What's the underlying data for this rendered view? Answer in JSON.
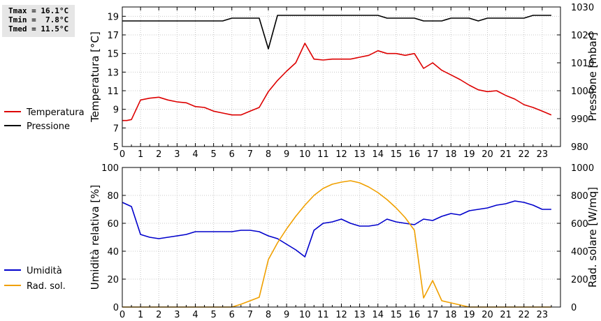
{
  "stats": {
    "tmax": "Tmax = 16.1°C",
    "tmin": "Tmin =  7.8°C",
    "tmed": "Tmed = 11.5°C"
  },
  "chart_data": [
    {
      "type": "line",
      "x_ticks": [
        "0",
        "1",
        "2",
        "3",
        "4",
        "5",
        "6",
        "7",
        "8",
        "9",
        "10",
        "11",
        "12",
        "13",
        "14",
        "15",
        "16",
        "17",
        "18",
        "19",
        "20",
        "21",
        "22",
        "23"
      ],
      "xlim": [
        0,
        24
      ],
      "ylabel": "Temperatura [°C]",
      "ylim": [
        5,
        20
      ],
      "y_ticks": [
        "5",
        "7",
        "9",
        "11",
        "13",
        "15",
        "17",
        "19"
      ],
      "y2label": "Pressione [mbar]",
      "y2lim": [
        980,
        1030
      ],
      "y2_ticks": [
        "980",
        "990",
        "1000",
        "1010",
        "1020",
        "1030"
      ],
      "grid": true,
      "legend_position": "left",
      "series": [
        {
          "name": "Temperatura",
          "color": "#dd0000",
          "axis": "left",
          "x": [
            0,
            0.25,
            0.5,
            1,
            1.5,
            2,
            2.5,
            3,
            3.5,
            4,
            4.5,
            5,
            5.5,
            6,
            6.5,
            7,
            7.5,
            8,
            8.5,
            9,
            9.5,
            10,
            10.5,
            11,
            11.5,
            12,
            12.5,
            13,
            13.5,
            14,
            14.5,
            15,
            15.5,
            16,
            16.5,
            17,
            17.5,
            18,
            18.5,
            19,
            19.5,
            20,
            20.5,
            21,
            21.5,
            22,
            22.5,
            23,
            23.5
          ],
          "y": [
            7.8,
            7.8,
            7.9,
            10.0,
            10.2,
            10.3,
            10.0,
            9.8,
            9.7,
            9.3,
            9.2,
            8.8,
            8.6,
            8.4,
            8.4,
            8.8,
            9.2,
            10.9,
            12.1,
            13.1,
            14.0,
            16.1,
            14.4,
            14.3,
            14.4,
            14.4,
            14.4,
            14.6,
            14.8,
            15.3,
            15.0,
            15.0,
            14.8,
            15.0,
            13.4,
            14.0,
            13.2,
            12.7,
            12.2,
            11.6,
            11.1,
            10.9,
            11.0,
            10.5,
            10.1,
            9.5,
            9.2,
            8.8,
            8.4
          ]
        },
        {
          "name": "Pressione",
          "color": "#000000",
          "axis": "right",
          "x": [
            0,
            1,
            2,
            3,
            4,
            5,
            5.5,
            6,
            6.5,
            7,
            7.5,
            8,
            8.5,
            9,
            10,
            11,
            12,
            13,
            14,
            14.5,
            15,
            16,
            16.5,
            17,
            17.5,
            18,
            19,
            19.5,
            20,
            21,
            22,
            22.5,
            23,
            23.5
          ],
          "y": [
            1025,
            1025,
            1025,
            1025,
            1025,
            1025,
            1025,
            1026,
            1026,
            1026,
            1026,
            1015,
            1027,
            1027,
            1027,
            1027,
            1027,
            1027,
            1027,
            1026,
            1026,
            1026,
            1025,
            1025,
            1025,
            1026,
            1026,
            1025,
            1026,
            1026,
            1026,
            1027,
            1027,
            1027
          ]
        }
      ]
    },
    {
      "type": "line",
      "x_ticks": [
        "0",
        "1",
        "2",
        "3",
        "4",
        "5",
        "6",
        "7",
        "8",
        "9",
        "10",
        "11",
        "12",
        "13",
        "14",
        "15",
        "16",
        "17",
        "18",
        "19",
        "20",
        "21",
        "22",
        "23"
      ],
      "xlim": [
        0,
        24
      ],
      "ylabel": "Umidità relativa [%]",
      "ylim": [
        0,
        100
      ],
      "y_ticks": [
        "0",
        "20",
        "40",
        "60",
        "80",
        "100"
      ],
      "y2label": "Rad. solare [W/mq]",
      "y2lim": [
        0,
        1000
      ],
      "y2_ticks": [
        "0",
        "200",
        "400",
        "600",
        "800",
        "1000"
      ],
      "grid": true,
      "legend_position": "left",
      "series": [
        {
          "name": "Umidità",
          "color": "#0000cc",
          "axis": "left",
          "x": [
            0,
            0.5,
            1,
            1.5,
            2,
            2.5,
            3,
            3.5,
            4,
            4.5,
            5,
            5.5,
            6,
            6.5,
            7,
            7.5,
            8,
            8.5,
            9,
            9.5,
            10,
            10.5,
            11,
            11.5,
            12,
            12.5,
            13,
            13.5,
            14,
            14.5,
            15,
            15.5,
            16,
            16.5,
            17,
            17.5,
            18,
            18.5,
            19,
            19.5,
            20,
            20.5,
            21,
            21.5,
            22,
            22.5,
            23,
            23.5
          ],
          "y": [
            75,
            72,
            52,
            50,
            49,
            50,
            51,
            52,
            54,
            54,
            54,
            54,
            54,
            55,
            55,
            54,
            51,
            49,
            45,
            41,
            36,
            55,
            60,
            61,
            63,
            60,
            58,
            58,
            59,
            63,
            61,
            60,
            59,
            63,
            62,
            65,
            67,
            66,
            69,
            70,
            71,
            73,
            74,
            76,
            75,
            73,
            70,
            70
          ]
        },
        {
          "name": "Rad. sol.",
          "color": "#f0a000",
          "axis": "right",
          "x": [
            0,
            1,
            2,
            3,
            4,
            5,
            6,
            6.5,
            7,
            7.5,
            8,
            8.5,
            9,
            9.5,
            10,
            10.5,
            11,
            11.5,
            12,
            12.5,
            13,
            13.5,
            14,
            14.5,
            15,
            15.5,
            16,
            16.5,
            17,
            17.5,
            18,
            18.5,
            19,
            20,
            21,
            22,
            23,
            23.5
          ],
          "y": [
            0,
            0,
            0,
            0,
            0,
            0,
            0,
            20,
            45,
            70,
            340,
            460,
            560,
            650,
            730,
            800,
            850,
            880,
            895,
            905,
            890,
            860,
            820,
            770,
            710,
            640,
            550,
            65,
            190,
            45,
            30,
            15,
            0,
            0,
            0,
            0,
            0,
            0
          ]
        }
      ]
    }
  ]
}
